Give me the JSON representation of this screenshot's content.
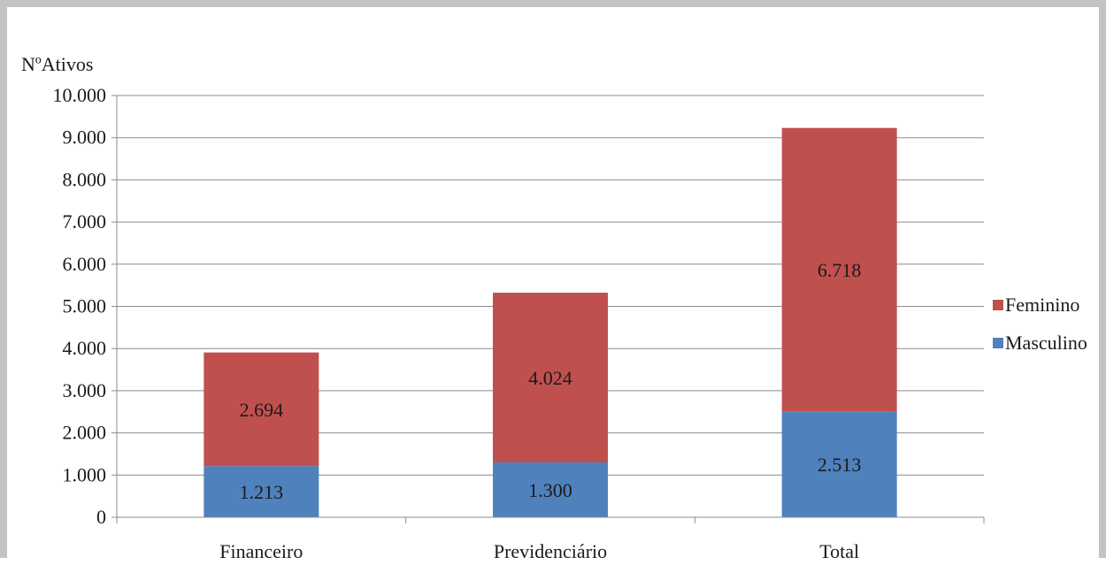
{
  "chart_data": {
    "type": "bar",
    "stacked": true,
    "ylabel": "NºAtivos",
    "xlabel": "",
    "categories": [
      "Financeiro",
      "Previdenciário",
      "Total"
    ],
    "series": [
      {
        "name": "Masculino",
        "color": "#4f81bd",
        "values": [
          1213,
          1300,
          2513
        ],
        "labels": [
          "1.213",
          "1.300",
          "2.513"
        ]
      },
      {
        "name": "Feminino",
        "color": "#c0504d",
        "values": [
          2694,
          4024,
          6718
        ],
        "labels": [
          "2.694",
          "4.024",
          "6.718"
        ]
      }
    ],
    "ylim": [
      0,
      10000
    ],
    "yticks": [
      0,
      1000,
      2000,
      3000,
      4000,
      5000,
      6000,
      7000,
      8000,
      9000,
      10000
    ],
    "ytick_labels": [
      "0",
      "1.000",
      "2.000",
      "3.000",
      "4.000",
      "5.000",
      "6.000",
      "7.000",
      "8.000",
      "9.000",
      "10.000"
    ],
    "grid": true,
    "legend": {
      "placement": "right",
      "entries": [
        {
          "label": "Feminino",
          "color": "#c0504d"
        },
        {
          "label": "Masculino",
          "color": "#4f81bd"
        }
      ]
    }
  }
}
